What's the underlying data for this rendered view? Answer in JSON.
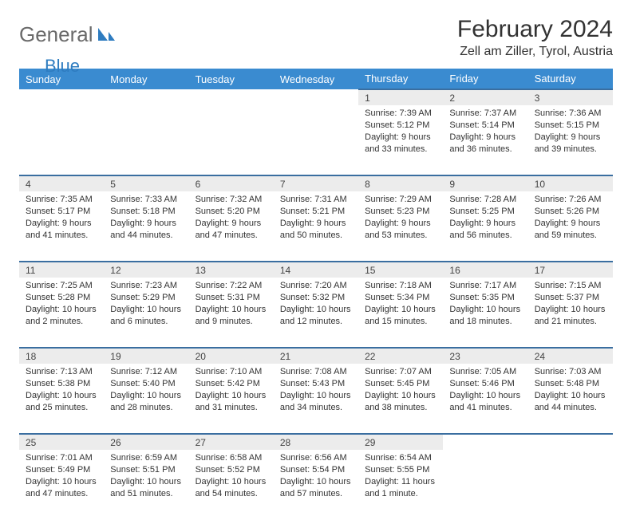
{
  "logo": {
    "word1": "General",
    "word2": "Blue"
  },
  "title": "February 2024",
  "location": "Zell am Ziller, Tyrol, Austria",
  "colors": {
    "header_bg": "#3a8bd0",
    "header_text": "#ffffff",
    "daynum_bg": "#ececec",
    "row_border": "#3a6ea0",
    "logo_gray": "#6a6a6a",
    "logo_blue": "#2e7cc0",
    "body_text": "#333333",
    "page_bg": "#ffffff"
  },
  "weekdays": [
    "Sunday",
    "Monday",
    "Tuesday",
    "Wednesday",
    "Thursday",
    "Friday",
    "Saturday"
  ],
  "weeks": [
    [
      null,
      null,
      null,
      null,
      {
        "n": "1",
        "sr": "Sunrise: 7:39 AM",
        "ss": "Sunset: 5:12 PM",
        "dl": "Daylight: 9 hours and 33 minutes."
      },
      {
        "n": "2",
        "sr": "Sunrise: 7:37 AM",
        "ss": "Sunset: 5:14 PM",
        "dl": "Daylight: 9 hours and 36 minutes."
      },
      {
        "n": "3",
        "sr": "Sunrise: 7:36 AM",
        "ss": "Sunset: 5:15 PM",
        "dl": "Daylight: 9 hours and 39 minutes."
      }
    ],
    [
      {
        "n": "4",
        "sr": "Sunrise: 7:35 AM",
        "ss": "Sunset: 5:17 PM",
        "dl": "Daylight: 9 hours and 41 minutes."
      },
      {
        "n": "5",
        "sr": "Sunrise: 7:33 AM",
        "ss": "Sunset: 5:18 PM",
        "dl": "Daylight: 9 hours and 44 minutes."
      },
      {
        "n": "6",
        "sr": "Sunrise: 7:32 AM",
        "ss": "Sunset: 5:20 PM",
        "dl": "Daylight: 9 hours and 47 minutes."
      },
      {
        "n": "7",
        "sr": "Sunrise: 7:31 AM",
        "ss": "Sunset: 5:21 PM",
        "dl": "Daylight: 9 hours and 50 minutes."
      },
      {
        "n": "8",
        "sr": "Sunrise: 7:29 AM",
        "ss": "Sunset: 5:23 PM",
        "dl": "Daylight: 9 hours and 53 minutes."
      },
      {
        "n": "9",
        "sr": "Sunrise: 7:28 AM",
        "ss": "Sunset: 5:25 PM",
        "dl": "Daylight: 9 hours and 56 minutes."
      },
      {
        "n": "10",
        "sr": "Sunrise: 7:26 AM",
        "ss": "Sunset: 5:26 PM",
        "dl": "Daylight: 9 hours and 59 minutes."
      }
    ],
    [
      {
        "n": "11",
        "sr": "Sunrise: 7:25 AM",
        "ss": "Sunset: 5:28 PM",
        "dl": "Daylight: 10 hours and 2 minutes."
      },
      {
        "n": "12",
        "sr": "Sunrise: 7:23 AM",
        "ss": "Sunset: 5:29 PM",
        "dl": "Daylight: 10 hours and 6 minutes."
      },
      {
        "n": "13",
        "sr": "Sunrise: 7:22 AM",
        "ss": "Sunset: 5:31 PM",
        "dl": "Daylight: 10 hours and 9 minutes."
      },
      {
        "n": "14",
        "sr": "Sunrise: 7:20 AM",
        "ss": "Sunset: 5:32 PM",
        "dl": "Daylight: 10 hours and 12 minutes."
      },
      {
        "n": "15",
        "sr": "Sunrise: 7:18 AM",
        "ss": "Sunset: 5:34 PM",
        "dl": "Daylight: 10 hours and 15 minutes."
      },
      {
        "n": "16",
        "sr": "Sunrise: 7:17 AM",
        "ss": "Sunset: 5:35 PM",
        "dl": "Daylight: 10 hours and 18 minutes."
      },
      {
        "n": "17",
        "sr": "Sunrise: 7:15 AM",
        "ss": "Sunset: 5:37 PM",
        "dl": "Daylight: 10 hours and 21 minutes."
      }
    ],
    [
      {
        "n": "18",
        "sr": "Sunrise: 7:13 AM",
        "ss": "Sunset: 5:38 PM",
        "dl": "Daylight: 10 hours and 25 minutes."
      },
      {
        "n": "19",
        "sr": "Sunrise: 7:12 AM",
        "ss": "Sunset: 5:40 PM",
        "dl": "Daylight: 10 hours and 28 minutes."
      },
      {
        "n": "20",
        "sr": "Sunrise: 7:10 AM",
        "ss": "Sunset: 5:42 PM",
        "dl": "Daylight: 10 hours and 31 minutes."
      },
      {
        "n": "21",
        "sr": "Sunrise: 7:08 AM",
        "ss": "Sunset: 5:43 PM",
        "dl": "Daylight: 10 hours and 34 minutes."
      },
      {
        "n": "22",
        "sr": "Sunrise: 7:07 AM",
        "ss": "Sunset: 5:45 PM",
        "dl": "Daylight: 10 hours and 38 minutes."
      },
      {
        "n": "23",
        "sr": "Sunrise: 7:05 AM",
        "ss": "Sunset: 5:46 PM",
        "dl": "Daylight: 10 hours and 41 minutes."
      },
      {
        "n": "24",
        "sr": "Sunrise: 7:03 AM",
        "ss": "Sunset: 5:48 PM",
        "dl": "Daylight: 10 hours and 44 minutes."
      }
    ],
    [
      {
        "n": "25",
        "sr": "Sunrise: 7:01 AM",
        "ss": "Sunset: 5:49 PM",
        "dl": "Daylight: 10 hours and 47 minutes."
      },
      {
        "n": "26",
        "sr": "Sunrise: 6:59 AM",
        "ss": "Sunset: 5:51 PM",
        "dl": "Daylight: 10 hours and 51 minutes."
      },
      {
        "n": "27",
        "sr": "Sunrise: 6:58 AM",
        "ss": "Sunset: 5:52 PM",
        "dl": "Daylight: 10 hours and 54 minutes."
      },
      {
        "n": "28",
        "sr": "Sunrise: 6:56 AM",
        "ss": "Sunset: 5:54 PM",
        "dl": "Daylight: 10 hours and 57 minutes."
      },
      {
        "n": "29",
        "sr": "Sunrise: 6:54 AM",
        "ss": "Sunset: 5:55 PM",
        "dl": "Daylight: 11 hours and 1 minute."
      },
      null,
      null
    ]
  ]
}
